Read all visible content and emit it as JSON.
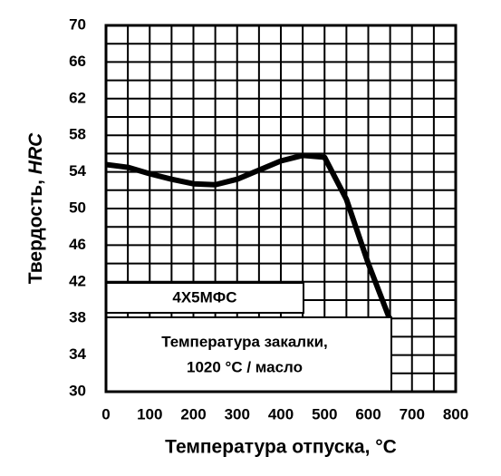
{
  "chart_data": {
    "type": "line",
    "x_label": "Температура отпуска, °С",
    "y_label": "Твердость,",
    "y_label_unit": "HRC",
    "annotations": [
      "4Х5МФС",
      "Температура закалки,",
      "1020 °С / масло"
    ],
    "x": [
      0,
      50,
      100,
      150,
      200,
      250,
      300,
      350,
      400,
      450,
      500,
      550,
      600,
      650
    ],
    "series": [
      {
        "color": "#000000",
        "values": [
          54.8,
          54.5,
          53.8,
          53.2,
          52.7,
          52.6,
          53.2,
          54.2,
          55.2,
          55.8,
          55.6,
          51,
          44,
          37.8
        ]
      }
    ],
    "xlim": [
      0,
      800
    ],
    "xticks": [
      0,
      100,
      200,
      300,
      400,
      500,
      600,
      700,
      800
    ],
    "xminorticks": [
      50,
      150,
      250,
      350,
      450,
      550,
      650,
      750
    ],
    "ylim": [
      30,
      70
    ],
    "yticks": [
      30,
      34,
      38,
      42,
      46,
      50,
      54,
      58,
      62,
      66,
      70
    ],
    "yminorticks": [
      32,
      36,
      40,
      44,
      48,
      52,
      56,
      60,
      64,
      68
    ],
    "grid": true
  }
}
